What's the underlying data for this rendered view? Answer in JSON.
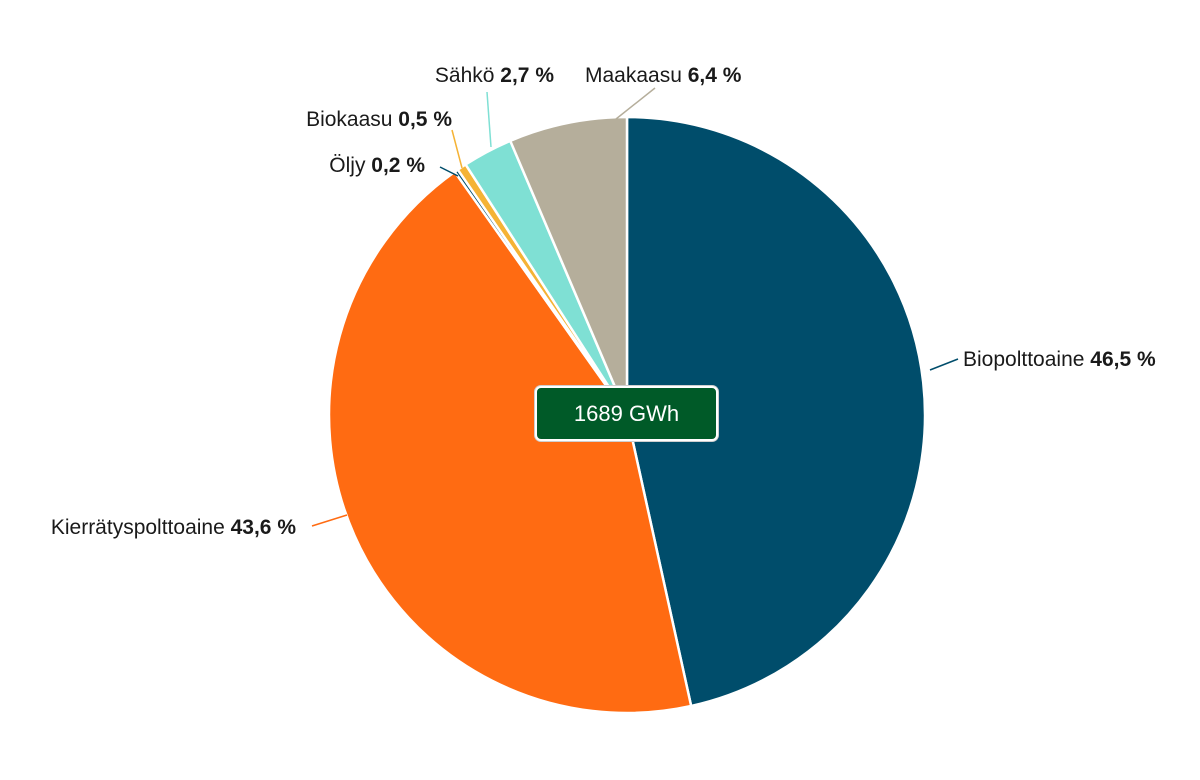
{
  "chart_data": {
    "type": "pie",
    "total_label": "1689 GWh",
    "slices": [
      {
        "name": "Biopolttoaine",
        "value": 46.5,
        "value_label": "46,5 %",
        "color": "#004d6b"
      },
      {
        "name": "Kierrätyspolttoaine",
        "value": 43.6,
        "value_label": "43,6 %",
        "color": "#ff6b12"
      },
      {
        "name": "Öljy",
        "value": 0.2,
        "value_label": "0,2 %",
        "color": "#004d6b"
      },
      {
        "name": "Biokaasu",
        "value": 0.5,
        "value_label": "0,5 %",
        "color": "#f5b335"
      },
      {
        "name": "Sähkö",
        "value": 2.7,
        "value_label": "2,7 %",
        "color": "#7fe0d4"
      },
      {
        "name": "Maakaasu",
        "value": 6.4,
        "value_label": "6,4 %",
        "color": "#b5ae9b"
      }
    ]
  },
  "colors": {
    "total_box_bg": "#005a28",
    "slice_border": "#ffffff"
  }
}
